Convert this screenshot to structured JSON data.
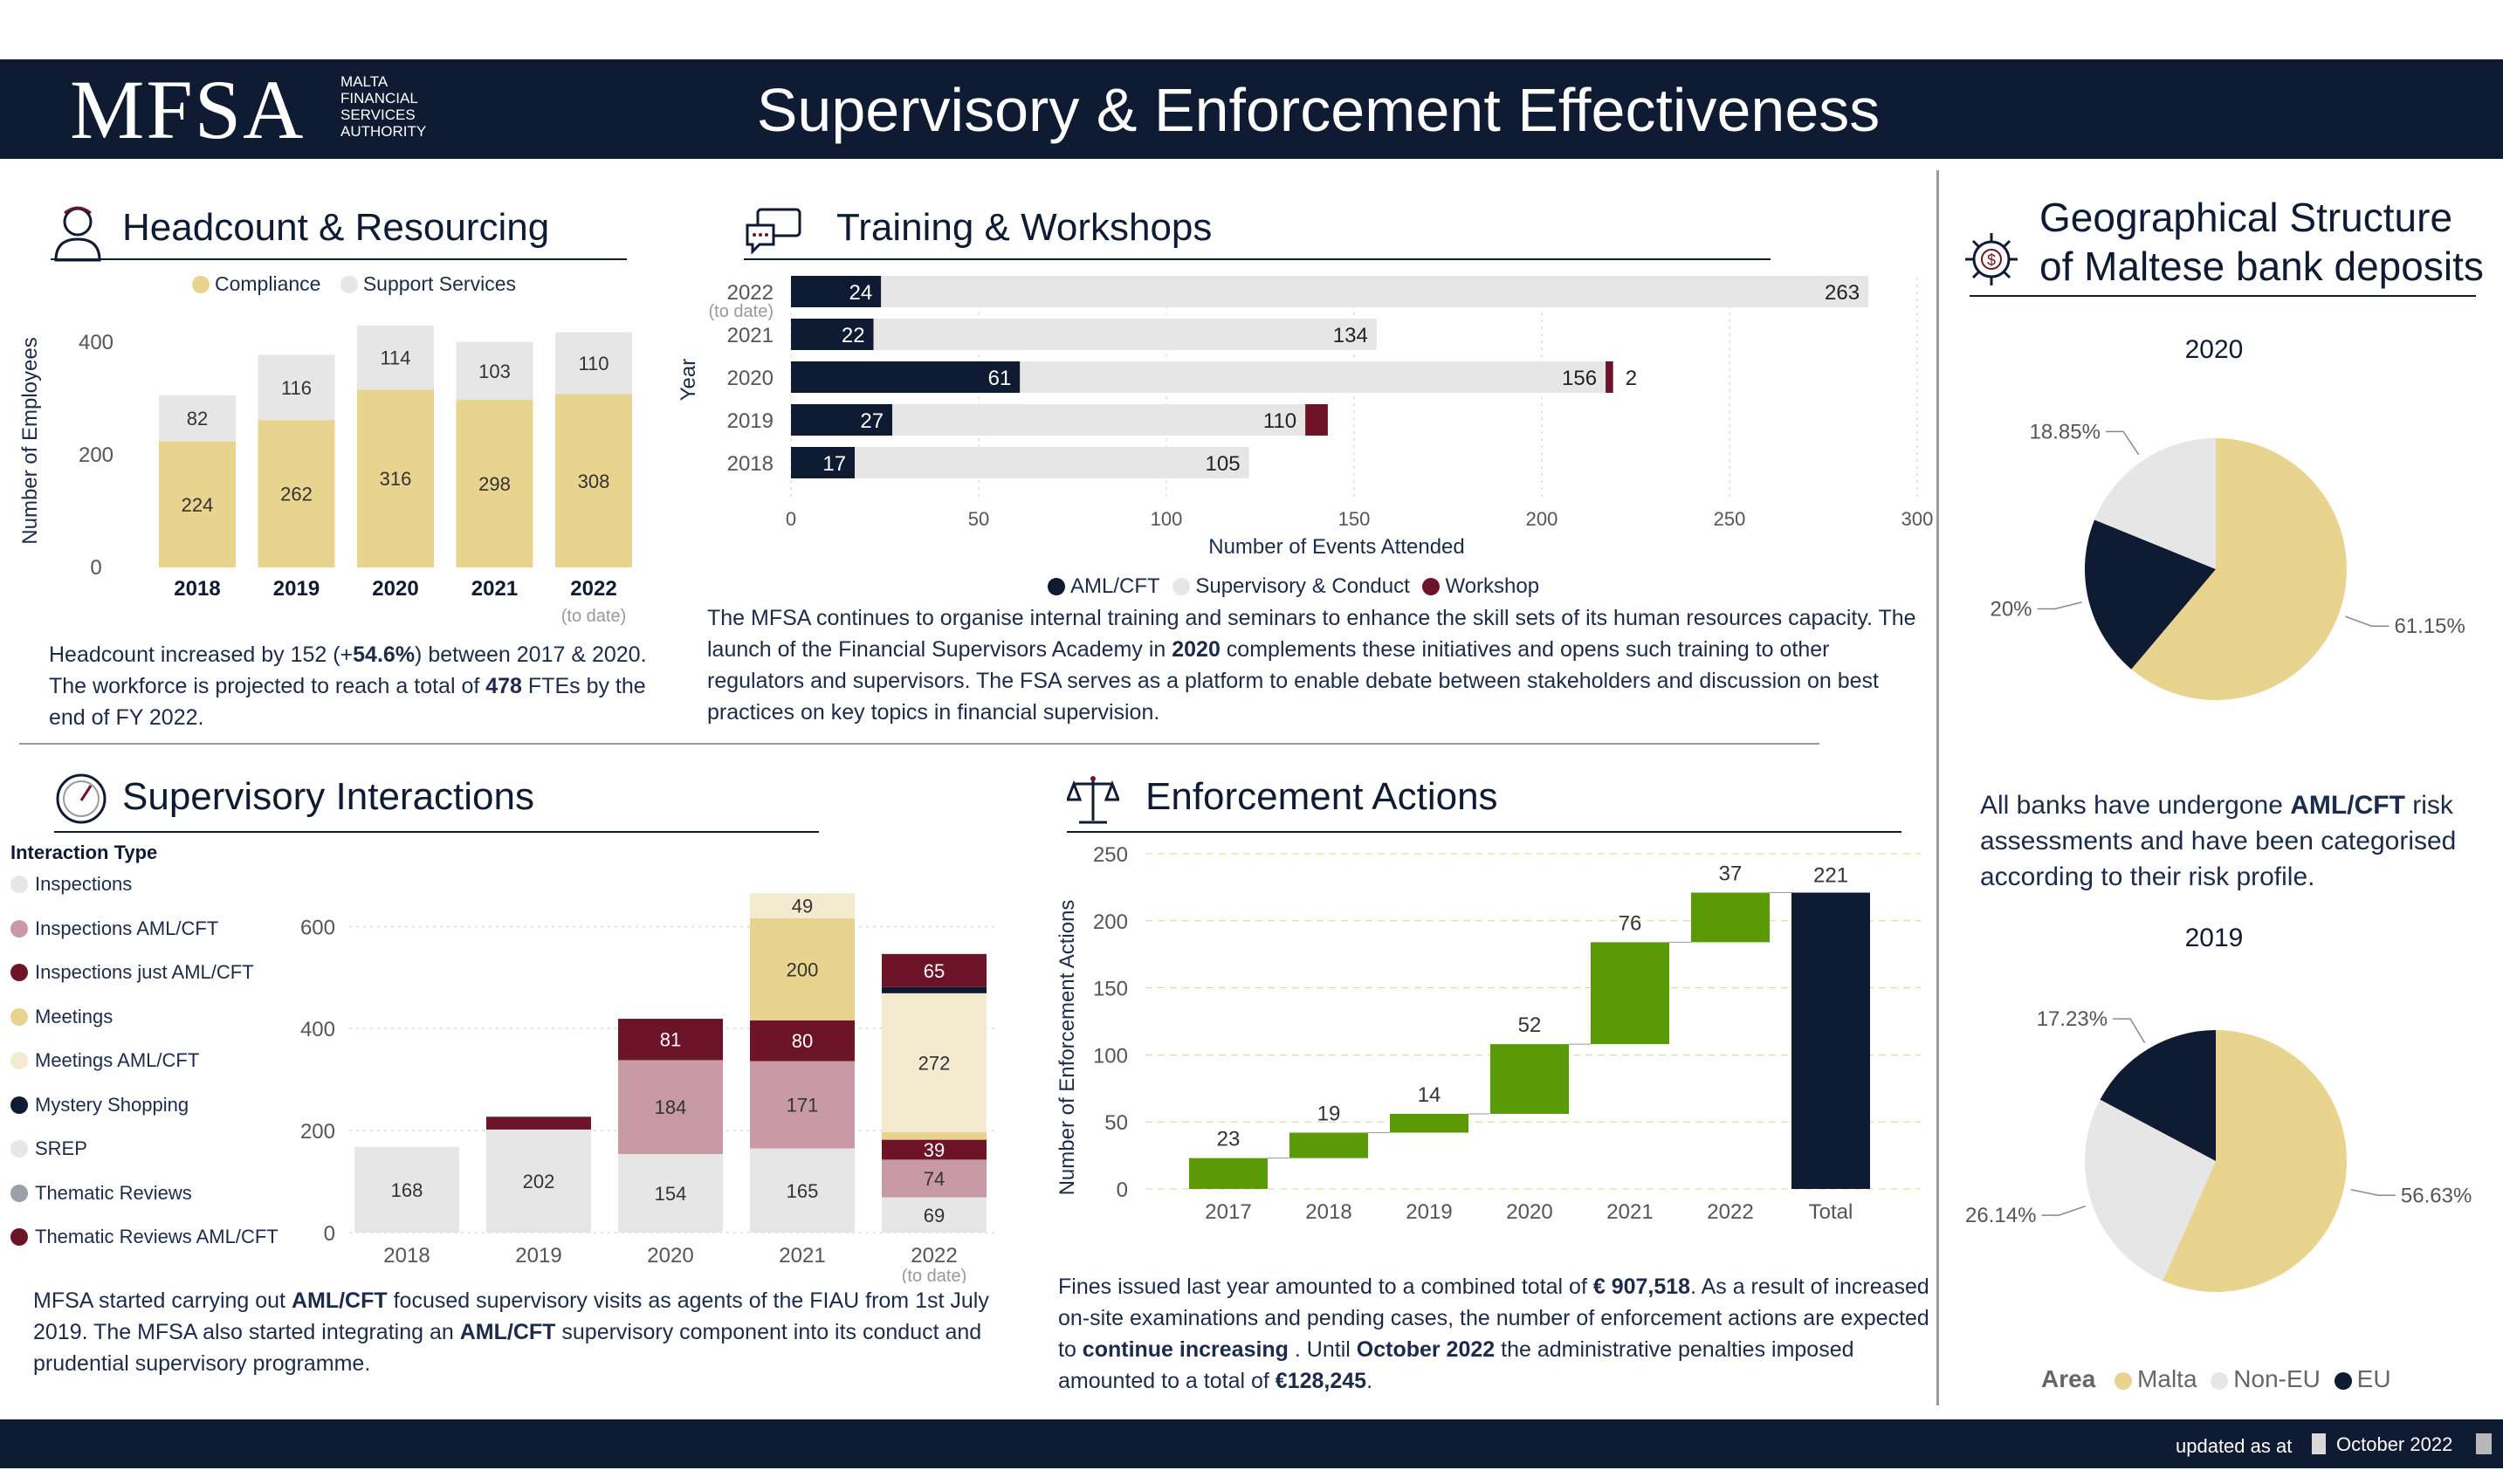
{
  "header": {
    "logo": "MFSA",
    "logo_sub": [
      "MALTA",
      "FINANCIAL",
      "SERVICES",
      "AUTHORITY"
    ],
    "title": "Supervisory & Enforcement Effectiveness"
  },
  "footer": {
    "updated_label": "updated as at",
    "date": "October 2022"
  },
  "colors": {
    "navy": "#0e1b33",
    "compliance": "#e8d38f",
    "support": "#e6e6e6",
    "maroon": "#6e1428",
    "green": "#5a9a06",
    "aml_light": "#c79aa6",
    "meetings_aml": "#f3ead0"
  },
  "headcount": {
    "title": "Headcount & Resourcing",
    "icon": "person-icon",
    "legend": [
      "Compliance",
      "Support Services"
    ],
    "ylabel": "Number of Employees",
    "yticks": [
      "0",
      "200",
      "400"
    ],
    "to_date": "(to date)",
    "text": {
      "p1": "Headcount increased by 152 (+",
      "b1": "54.6%",
      "p2": ") between 2017 & 2020. The workforce is projected to reach a total of ",
      "b2": "478",
      "p3": " FTEs by the end of FY 2022."
    },
    "chart_data": {
      "type": "bar",
      "categories": [
        "2018",
        "2019",
        "2020",
        "2021",
        "2022"
      ],
      "series": [
        {
          "name": "Compliance",
          "values": [
            224,
            262,
            316,
            298,
            308
          ]
        },
        {
          "name": "Support Services",
          "values": [
            82,
            116,
            114,
            103,
            110
          ]
        }
      ],
      "ylabel": "Number of Employees",
      "ylim": [
        0,
        450
      ]
    }
  },
  "training": {
    "title": "Training & Workshops",
    "icon": "chat-icon",
    "ylabel": "Year",
    "xlabel": "Number of Events Attended",
    "to_date": "(to date)",
    "xticks": [
      "0",
      "50",
      "100",
      "150",
      "200",
      "250",
      "300"
    ],
    "legend": [
      "AML/CFT",
      "Supervisory & Conduct",
      "Workshop"
    ],
    "text": {
      "p1": "The MFSA continues to organise internal training and seminars to enhance the skill sets of its human resources capacity. The launch of the Financial Supervisors Academy in ",
      "b1": "2020",
      "p2": " complements these initiatives and opens such training to other regulators and supervisors. The FSA serves as a platform to enable debate between stakeholders and discussion on best practices on key topics in financial supervision."
    },
    "chart_data": {
      "type": "bar",
      "categories": [
        "2022",
        "2021",
        "2020",
        "2019",
        "2018"
      ],
      "series": [
        {
          "name": "AML/CFT",
          "values": [
            24,
            22,
            61,
            27,
            17
          ]
        },
        {
          "name": "Supervisory & Conduct",
          "values": [
            263,
            134,
            156,
            110,
            105
          ]
        },
        {
          "name": "Workshop",
          "values": [
            0,
            0,
            2,
            6,
            0
          ]
        }
      ],
      "xlabel": "Number of Events Attended",
      "ylabel": "Year",
      "xlim": [
        0,
        300
      ]
    }
  },
  "geo": {
    "title_line1": "Geographical Structure",
    "title_line2": "of Maltese bank deposits",
    "icon": "gear-dollar-icon",
    "year_a": "2020",
    "year_b": "2019",
    "text": {
      "p1": "All banks have undergone ",
      "b1": "AML/CFT",
      "p2": " risk assessments and have been categorised according to their risk profile."
    },
    "legend_title": "Area",
    "legend": [
      "Malta",
      "Non-EU",
      "EU"
    ],
    "chart_data": [
      {
        "type": "pie",
        "title": "2020",
        "labels": [
          "Malta",
          "EU",
          "Non-EU"
        ],
        "values": [
          61.15,
          20.0,
          18.85
        ],
        "value_labels": [
          "61.15%",
          "20%",
          "18.85%"
        ]
      },
      {
        "type": "pie",
        "title": "2019",
        "labels": [
          "Malta",
          "Non-EU",
          "EU"
        ],
        "values": [
          56.63,
          26.14,
          17.23
        ],
        "value_labels": [
          "56.63%",
          "26.14%",
          "17.23%"
        ]
      }
    ]
  },
  "supervisory": {
    "title": "Supervisory Interactions",
    "icon": "gauge-icon",
    "legend_title": "Interaction Type",
    "legend": [
      "Inspections",
      "Inspections  AML/CFT",
      "Inspections just AML/CFT",
      "Meetings",
      "Meetings  AML/CFT",
      "Mystery Shopping",
      "SREP",
      "Thematic Reviews",
      "Thematic Reviews   AML/CFT"
    ],
    "yticks": [
      "0",
      "200",
      "400",
      "600"
    ],
    "to_date": "(to date)",
    "text": {
      "p1": "MFSA started carrying out ",
      "b1": "AML/CFT",
      "p2": " focused supervisory visits as agents of the FIAU from 1st July 2019. The MFSA also started integrating an ",
      "b2": "AML/CFT",
      "p3": " supervisory component into its conduct and prudential supervisory programme."
    },
    "chart_data": {
      "type": "bar",
      "categories": [
        "2018",
        "2019",
        "2020",
        "2021",
        "2022"
      ],
      "series": [
        {
          "name": "Inspections",
          "values": [
            168,
            202,
            154,
            165,
            69
          ]
        },
        {
          "name": "Inspections  AML/CFT",
          "values": [
            0,
            0,
            184,
            171,
            74
          ]
        },
        {
          "name": "Inspections just AML/CFT",
          "values": [
            0,
            25,
            81,
            80,
            39
          ]
        },
        {
          "name": "Meetings",
          "values": [
            0,
            0,
            0,
            200,
            15
          ]
        },
        {
          "name": "Meetings  AML/CFT",
          "values": [
            0,
            0,
            0,
            49,
            272
          ]
        },
        {
          "name": "Mystery Shopping",
          "values": [
            0,
            0,
            0,
            0,
            12
          ]
        },
        {
          "name": "SREP",
          "values": [
            0,
            0,
            0,
            0,
            0
          ]
        },
        {
          "name": "Thematic Reviews",
          "values": [
            0,
            0,
            0,
            0,
            0
          ]
        },
        {
          "name": "Thematic Reviews   AML/CFT",
          "values": [
            0,
            0,
            0,
            0,
            65
          ]
        }
      ],
      "ylim": [
        0,
        650
      ]
    }
  },
  "enforcement": {
    "title": "Enforcement Actions",
    "icon": "scales-icon",
    "ylabel": "Number of Enforcement Actions",
    "yticks": [
      "0",
      "50",
      "100",
      "150",
      "200",
      "250"
    ],
    "text": {
      "p1": "Fines issued last year amounted to a combined total of ",
      "b1": "€ 907,518",
      "p2": ". As a result of increased on-site examinations and pending cases, the number of enforcement actions are expected to ",
      "b2": "continue increasing",
      "p3": " . Until ",
      "b3": "October 2022",
      "p4": " the administrative penalties imposed amounted to a total of ",
      "b4": "€128,245",
      "p5": "."
    },
    "chart_data": {
      "type": "waterfall",
      "categories": [
        "2017",
        "2018",
        "2019",
        "2020",
        "2021",
        "2022",
        "Total"
      ],
      "values": [
        23,
        19,
        14,
        52,
        76,
        37,
        221
      ],
      "ylabel": "Number of Enforcement Actions",
      "ylim": [
        0,
        250
      ]
    }
  }
}
